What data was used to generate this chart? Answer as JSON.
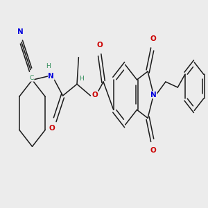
{
  "bg_color": "#ececec",
  "figsize": [
    3.0,
    3.0
  ],
  "dpi": 100,
  "bond_lw": 1.1,
  "black": "#1a1a1a",
  "red": "#cc0000",
  "blue": "#0000dd",
  "teal": "#2e8b57",
  "xlim": [
    0,
    10
  ],
  "ylim": [
    3.5,
    8.0
  ]
}
